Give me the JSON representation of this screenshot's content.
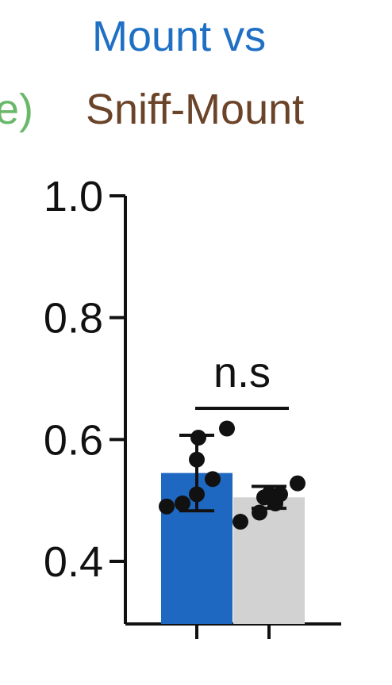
{
  "chart_data": {
    "type": "bar",
    "title_parts": {
      "cut_left": "e)",
      "line1": "Mount vs",
      "line2": "Sniff-Mount"
    },
    "colors": {
      "cut_left": "#6ab86a",
      "line1": "#1f6fc5",
      "line2": "#6b4328",
      "axis": "#111111",
      "points": "#111111"
    },
    "ylim": [
      0.4,
      1.0
    ],
    "yticks": [
      "1.0",
      "0.8",
      "0.6",
      "0.4"
    ],
    "ytick_values": [
      1.0,
      0.8,
      0.6,
      0.4
    ],
    "categories": [
      "",
      ""
    ],
    "bars": [
      {
        "value": 0.545,
        "sd": 0.062,
        "color": "#1f68c1",
        "points": [
          0.49,
          0.495,
          0.51,
          0.535,
          0.567,
          0.603,
          0.618
        ]
      },
      {
        "value": 0.505,
        "sd": 0.018,
        "color": "#d2d2d2",
        "points": [
          0.465,
          0.48,
          0.495,
          0.505,
          0.51,
          0.51,
          0.528
        ]
      }
    ],
    "annotation": "n.s"
  }
}
